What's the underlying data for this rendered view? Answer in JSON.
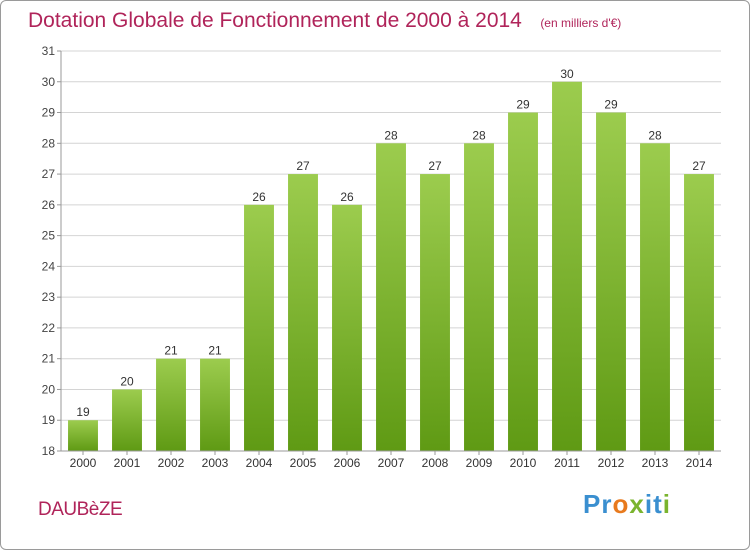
{
  "title": "Dotation Globale de Fonctionnement de 2000 à 2014",
  "unit_note": "(en milliers d'€)",
  "commune": "DAUBèZE",
  "logo": {
    "text": "Proxiti",
    "letters": [
      {
        "char": "P",
        "color": "#3a8fd0"
      },
      {
        "char": "r",
        "color": "#3a8fd0"
      },
      {
        "char": "o",
        "color": "#e87a1e"
      },
      {
        "char": "x",
        "color": "#7ab42e"
      },
      {
        "char": "i",
        "color": "#3a8fd0"
      },
      {
        "char": "t",
        "color": "#3a8fd0"
      },
      {
        "char": "i",
        "color": "#7ab42e"
      }
    ]
  },
  "colors": {
    "bar_top": "#9ccc4e",
    "bar_bottom": "#5f9a14",
    "title": "#b0245a",
    "grid": "#d4d4d4"
  },
  "chart_data": {
    "type": "bar",
    "title": "Dotation Globale de Fonctionnement de 2000 à 2014",
    "subtitle": "(en milliers d'€)",
    "xlabel": "",
    "ylabel": "",
    "categories": [
      "2000",
      "2001",
      "2002",
      "2003",
      "2004",
      "2005",
      "2006",
      "2007",
      "2008",
      "2009",
      "2010",
      "2011",
      "2012",
      "2013",
      "2014"
    ],
    "values": [
      19,
      20,
      21,
      21,
      26,
      27,
      26,
      28,
      27,
      28,
      29,
      30,
      29,
      28,
      27
    ],
    "ylim": [
      18,
      31
    ],
    "yticks": [
      18,
      19,
      20,
      21,
      22,
      23,
      24,
      25,
      26,
      27,
      28,
      29,
      30,
      31
    ],
    "grid": true,
    "data_labels": true
  }
}
